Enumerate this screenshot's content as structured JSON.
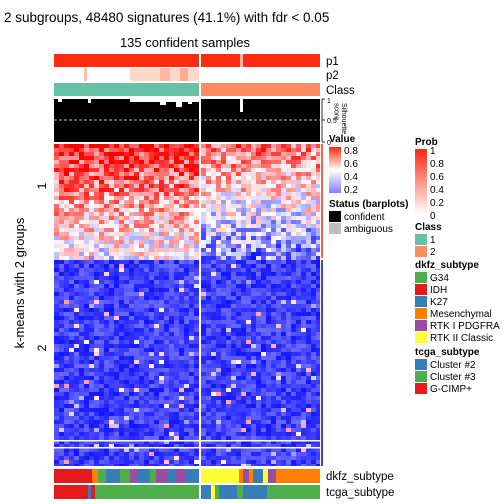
{
  "chart_data": {
    "type": "heatmap",
    "title": "2 subgroups, 48480 signatures (41.1%) with fdr < 0.05",
    "subtitle": "135 confident samples",
    "row_axis_label": "k-means with 2 groups",
    "row_group_labels": [
      "1",
      "2"
    ],
    "top_annotations": {
      "p1": "p1",
      "p2": "p2",
      "class": "Class",
      "silhouette_label": "Silhouette\nscore",
      "silhouette_ticks": [
        "1",
        "0.5",
        "0"
      ]
    },
    "bottom_annotations": {
      "dkfz": "dkfz_subtype",
      "tcga": "tcga_subtype"
    },
    "legends": {
      "value": {
        "title": "Value",
        "ticks": [
          "0.8",
          "0.6",
          "0.4",
          "0.2"
        ],
        "colors": [
          "#ff0000",
          "#ffffff",
          "#0000ff"
        ]
      },
      "prob": {
        "title": "Prob",
        "ticks": [
          "1",
          "0.8",
          "0.6",
          "0.4",
          "0.2",
          "0"
        ],
        "colors": [
          "#ff0000",
          "#ffffff"
        ]
      },
      "status": {
        "title": "Status (barplots)",
        "items": [
          {
            "label": "confident",
            "color": "#000000"
          },
          {
            "label": "ambiguous",
            "color": "#bebebe"
          }
        ]
      },
      "class": {
        "title": "Class",
        "items": [
          {
            "label": "1",
            "color": "#66c2a5"
          },
          {
            "label": "2",
            "color": "#fc8d62"
          }
        ]
      },
      "dkfz": {
        "title": "dkfz_subtype",
        "items": [
          {
            "label": "G34",
            "color": "#4daf4a"
          },
          {
            "label": "IDH",
            "color": "#e41a1c"
          },
          {
            "label": "K27",
            "color": "#377eb8"
          },
          {
            "label": "Mesenchymal",
            "color": "#ff7f00"
          },
          {
            "label": "RTK I PDGFRA",
            "color": "#984ea3"
          },
          {
            "label": "RTK II Classic",
            "color": "#ffff33"
          }
        ]
      },
      "tcga": {
        "title": "tcga_subtype",
        "items": [
          {
            "label": "Cluster #2",
            "color": "#377eb8"
          },
          {
            "label": "Cluster #3",
            "color": "#4daf4a"
          },
          {
            "label": "G-CIMP+",
            "color": "#e41a1c"
          }
        ]
      }
    }
  }
}
